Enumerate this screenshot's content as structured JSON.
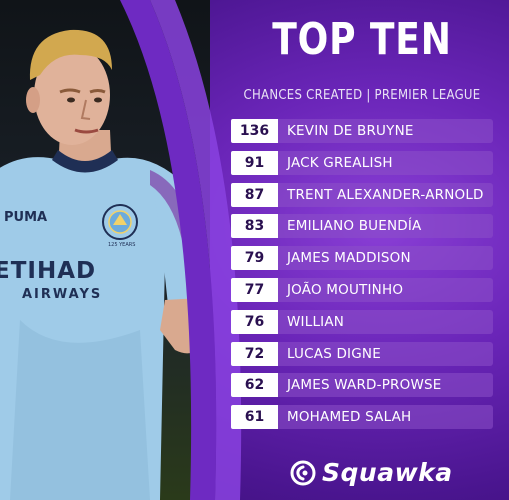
{
  "header": {
    "title": "TOP TEN",
    "subtitle": "CHANCES CREATED | PREMIER LEAGUE"
  },
  "rankings": [
    {
      "value": "136",
      "name": "KEVIN DE BRUYNE"
    },
    {
      "value": "91",
      "name": "JACK GREALISH"
    },
    {
      "value": "87",
      "name": "TRENT ALEXANDER-ARNOLD"
    },
    {
      "value": "83",
      "name": "EMILIANO BUENDÍA"
    },
    {
      "value": "79",
      "name": "JAMES MADDISON"
    },
    {
      "value": "77",
      "name": "JOÃO MOUTINHO"
    },
    {
      "value": "76",
      "name": "WILLIAN"
    },
    {
      "value": "72",
      "name": "LUCAS DIGNE"
    },
    {
      "value": "62",
      "name": "JAMES WARD-PROWSE"
    },
    {
      "value": "61",
      "name": "MOHAMED SALAH"
    }
  ],
  "shirt": {
    "sponsor_line1": "ETIHAD",
    "sponsor_line2": "AIRWAYS",
    "kit_brand": "PUMA",
    "crest_caption": "125 YEARS"
  },
  "brand": {
    "name": "Squawka",
    "logo_icon": "squawka-logo-icon"
  },
  "colors": {
    "purple_dark": "#35106e",
    "purple_light": "#8a3fd6",
    "number_box": "#ffffff",
    "shirt_blue": "#9fcbe8"
  }
}
